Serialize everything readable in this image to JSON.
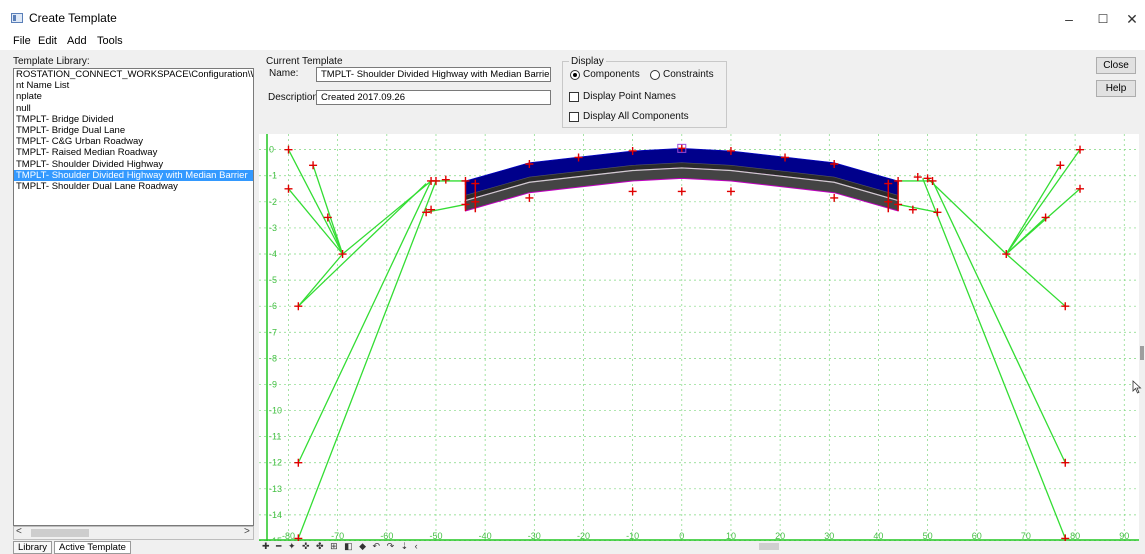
{
  "window": {
    "title": "Create Template",
    "minimize": "–",
    "maximize": "☐",
    "close": "✕"
  },
  "menu": [
    "File",
    "Edit",
    "Add",
    "Tools"
  ],
  "library": {
    "label": "Template Library:",
    "items": [
      "ROSTATION_CONNECT_WORKSPACE\\Configuration\\Wor",
      "nt Name List",
      "nplate",
      "null",
      "TMPLT- Bridge Divided",
      "TMPLT- Bridge Dual Lane",
      "TMPLT- C&G Urban Roadway",
      "TMPLT- Raised Median Roadway",
      "TMPLT- Shoulder Divided Highway",
      "TMPLT- Shoulder Divided Highway with Median Barrier",
      "TMPLT- Shoulder Dual Lane Roadway"
    ],
    "selected_index": 9,
    "scroll_left": "<",
    "scroll_right": ">"
  },
  "tabs": [
    "Library",
    "Active Template"
  ],
  "current_template": {
    "group_label": "Current Template",
    "name_label": "Name:",
    "name_value": "TMPLT- Shoulder Divided Highway with Median Barrier",
    "desc_label": "Description:",
    "desc_value": "Created 2017.09.26"
  },
  "display": {
    "group_label": "Display",
    "components": "Components",
    "constraints": "Constraints",
    "point_names": "Display Point Names",
    "all_components": "Display All Components",
    "selected": "Components"
  },
  "buttons": {
    "close": "Close",
    "help": "Help"
  },
  "chart_data": {
    "type": "line",
    "x_ticks": [
      "-80",
      "-70",
      "-60",
      "-50",
      "-40",
      "-30",
      "-20",
      "-10",
      "0",
      "10",
      "20",
      "30",
      "40",
      "50",
      "60",
      "70",
      "80",
      "90"
    ],
    "y_ticks": [
      "0",
      "-1",
      "-2",
      "-3",
      "-4",
      "-5",
      "-6",
      "-7",
      "-8",
      "-9",
      "-10",
      "-11",
      "-12",
      "-13",
      "-14",
      "-15"
    ],
    "xlim": [
      -86,
      93
    ],
    "ylim": [
      -15,
      0.6
    ],
    "grid": true,
    "colors": {
      "grid": "#7fd77f",
      "axis": "#22c522",
      "link": "#33dd33",
      "point": "#e00000",
      "top_band": "#00008b",
      "lower_band": "#444444",
      "layer_edge": "#c000c0"
    },
    "pavement_top": [
      [
        -44,
        -1.2
      ],
      [
        -31,
        -0.5
      ],
      [
        -10,
        -0.05
      ],
      [
        0,
        0.05
      ],
      [
        10,
        -0.05
      ],
      [
        31,
        -0.5
      ],
      [
        44,
        -1.2
      ]
    ],
    "layer_offsets": [
      0.55,
      0.75,
      1.15
    ],
    "pavement_points": [
      [
        -44,
        -1.2
      ],
      [
        -44,
        -2.1
      ],
      [
        -42,
        -1.3
      ],
      [
        -42,
        -2.0
      ],
      [
        -31,
        -0.55
      ],
      [
        -31,
        -1.85
      ],
      [
        -21,
        -0.3
      ],
      [
        -10,
        -0.05
      ],
      [
        -10,
        -1.6
      ],
      [
        0,
        0.05
      ],
      [
        0,
        -1.6
      ],
      [
        10,
        -0.05
      ],
      [
        10,
        -1.6
      ],
      [
        21,
        -0.3
      ],
      [
        31,
        -0.55
      ],
      [
        31,
        -1.85
      ],
      [
        42,
        -1.3
      ],
      [
        42,
        -2.0
      ],
      [
        44,
        -1.2
      ],
      [
        44,
        -2.1
      ]
    ],
    "side_points": [
      [
        -80,
        0
      ],
      [
        -80,
        -1.5
      ],
      [
        -75,
        -0.6
      ],
      [
        -72,
        -2.6
      ],
      [
        -69,
        -4
      ],
      [
        -78,
        -6
      ],
      [
        -78,
        -12
      ],
      [
        -78,
        -14.9
      ],
      [
        -48,
        -1.15
      ],
      [
        -50,
        -1.2
      ],
      [
        -51,
        -1.2
      ],
      [
        -52,
        -2.4
      ],
      [
        -51,
        -2.3
      ],
      [
        81,
        0
      ],
      [
        81,
        -1.5
      ],
      [
        77,
        -0.6
      ],
      [
        74,
        -2.6
      ],
      [
        66,
        -4
      ],
      [
        78,
        -6
      ],
      [
        78,
        -12
      ],
      [
        78,
        -14.9
      ],
      [
        48,
        -1.05
      ],
      [
        50,
        -1.1
      ],
      [
        51,
        -1.2
      ],
      [
        47,
        -2.3
      ],
      [
        52,
        -2.4
      ]
    ],
    "links": [
      [
        [
          -80,
          0
        ],
        [
          -69,
          -4
        ]
      ],
      [
        [
          -80,
          -1.5
        ],
        [
          -69,
          -4
        ]
      ],
      [
        [
          -75,
          -0.6
        ],
        [
          -69,
          -4
        ]
      ],
      [
        [
          -72,
          -2.6
        ],
        [
          -69,
          -4
        ]
      ],
      [
        [
          -78,
          -6
        ],
        [
          -69,
          -4
        ]
      ],
      [
        [
          -69,
          -4
        ],
        [
          -51,
          -1.2
        ]
      ],
      [
        [
          -78,
          -6
        ],
        [
          -52,
          -1.3
        ]
      ],
      [
        [
          -78,
          -12
        ],
        [
          -51,
          -1.2
        ]
      ],
      [
        [
          -78,
          -14.9
        ],
        [
          -50,
          -1.2
        ]
      ],
      [
        [
          -51,
          -1.2
        ],
        [
          -44,
          -1.2
        ]
      ],
      [
        [
          -52,
          -2.4
        ],
        [
          -44,
          -2.1
        ]
      ],
      [
        [
          81,
          0
        ],
        [
          66,
          -4
        ]
      ],
      [
        [
          81,
          -1.5
        ],
        [
          66,
          -4
        ]
      ],
      [
        [
          77,
          -0.6
        ],
        [
          66,
          -4
        ]
      ],
      [
        [
          74,
          -2.6
        ],
        [
          66,
          -4
        ]
      ],
      [
        [
          78,
          -6
        ],
        [
          66,
          -4
        ]
      ],
      [
        [
          66,
          -4
        ],
        [
          50,
          -1.1
        ]
      ],
      [
        [
          78,
          -12
        ],
        [
          51,
          -1.2
        ]
      ],
      [
        [
          78,
          -14.9
        ],
        [
          49,
          -1.1
        ]
      ],
      [
        [
          51,
          -1.2
        ],
        [
          44,
          -1.2
        ]
      ],
      [
        [
          52,
          -2.4
        ],
        [
          44,
          -2.1
        ]
      ]
    ],
    "marker": [
      0,
      0.05
    ]
  },
  "toolbar_glyphs": "✚ ━ ✦ ✜ ✤ ⊞ ◧ ◆ ↶ ↷ ⇣ ‹"
}
